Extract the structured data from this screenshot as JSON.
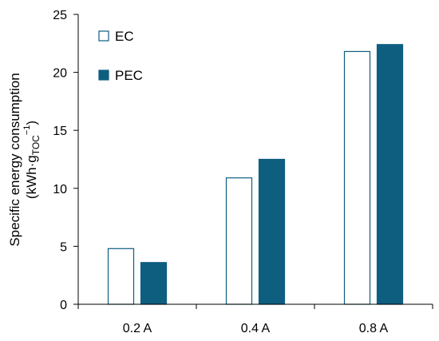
{
  "chart_data": {
    "type": "bar",
    "categories": [
      "0.2 A",
      "0.4 A",
      "0.8 A"
    ],
    "series": [
      {
        "name": "EC",
        "values": [
          4.8,
          10.9,
          21.8
        ],
        "fill": "#ffffff",
        "stroke": "#0e5e80"
      },
      {
        "name": "PEC",
        "values": [
          3.6,
          12.5,
          22.4
        ],
        "fill": "#0e5e80",
        "stroke": "#0e5e80"
      }
    ],
    "ylabel_line1": "Specific energy consumption",
    "ylabel_line2_main": "(kWh·g",
    "ylabel_line2_sub": "TOC",
    "ylabel_line2_sup": "−1",
    "ylabel_line2_end": ")",
    "ylim": [
      0,
      25
    ],
    "yticks": [
      0,
      5,
      10,
      15,
      20,
      25
    ],
    "grid": false,
    "legend_position": "top-left"
  }
}
